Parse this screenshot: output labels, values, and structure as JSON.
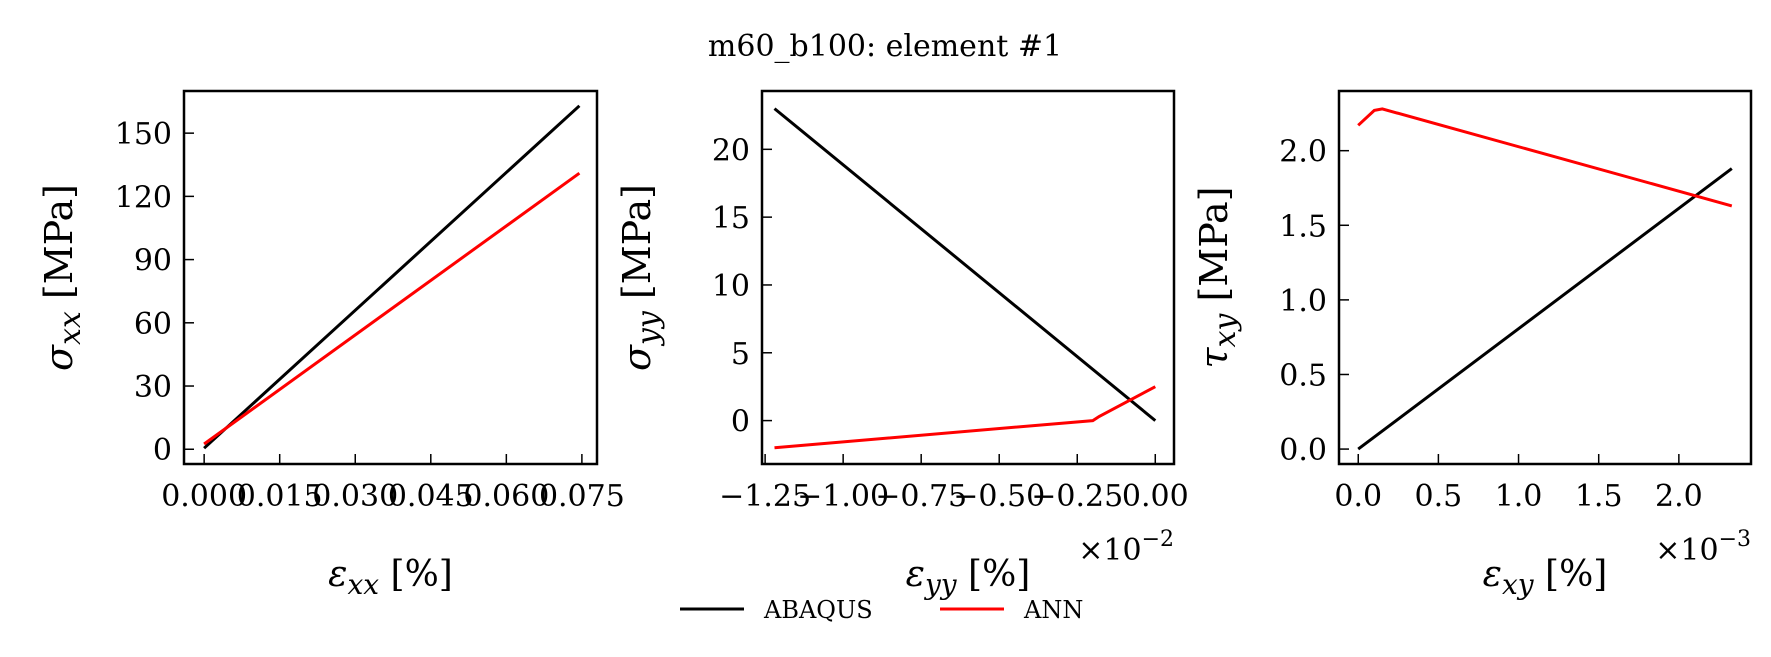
{
  "figure": {
    "title": "m60_b100: element #1",
    "legend": {
      "placement": "bottom-center",
      "entries": [
        {
          "label": "ABAQUS",
          "color": "#000000"
        },
        {
          "label": "ANN",
          "color": "#ff0000"
        }
      ]
    }
  },
  "chart_data": [
    {
      "type": "line",
      "xlabel": "εxx [%]",
      "xlabel_parts": {
        "symbol": "ε",
        "sub": "xx",
        "unit": " [%]"
      },
      "ylabel": "σxx [MPa]",
      "ylabel_parts": {
        "symbol": "σ",
        "sub": "xx",
        "unit": " [MPa]"
      },
      "xlim": [
        -0.004,
        0.078
      ],
      "ylim": [
        -7,
        170
      ],
      "xticks": [
        0.0,
        0.015,
        0.03,
        0.045,
        0.06,
        0.075
      ],
      "xtick_labels": [
        "0.000",
        "0.015",
        "0.030",
        "0.045",
        "0.060",
        "0.075"
      ],
      "yticks": [
        0,
        30,
        60,
        90,
        120,
        150
      ],
      "ytick_labels": [
        "0",
        "30",
        "60",
        "90",
        "120",
        "150"
      ],
      "x_offset_text": "",
      "grid": false,
      "series": [
        {
          "name": "ABAQUS",
          "color": "#000000",
          "x": [
            0.0,
            0.0745
          ],
          "y": [
            0.5,
            163
          ]
        },
        {
          "name": "ANN",
          "color": "#ff0000",
          "x": [
            0.0,
            0.0745
          ],
          "y": [
            2.5,
            131
          ]
        }
      ]
    },
    {
      "type": "line",
      "xlabel": "εyy [%]",
      "xlabel_parts": {
        "symbol": "ε",
        "sub": "yy",
        "unit": " [%]"
      },
      "ylabel": "σyy [MPa]",
      "ylabel_parts": {
        "symbol": "σ",
        "sub": "yy",
        "unit": " [MPa]"
      },
      "xlim": [
        -1.26,
        0.06
      ],
      "ylim": [
        -3.2,
        24.3
      ],
      "xticks": [
        -1.25,
        -1.0,
        -0.75,
        -0.5,
        -0.25,
        0.0
      ],
      "xtick_labels": [
        "−1.25",
        "−1.00",
        "−0.75",
        "−0.50",
        "−0.25",
        "0.00"
      ],
      "yticks": [
        0,
        5,
        10,
        15,
        20
      ],
      "ytick_labels": [
        "0",
        "5",
        "10",
        "15",
        "20"
      ],
      "x_offset_text": "×10−2",
      "x_offset_parts": {
        "base": "×10",
        "exp": "−2"
      },
      "grid": false,
      "series": [
        {
          "name": "ABAQUS",
          "color": "#000000",
          "x": [
            -1.22,
            0.0
          ],
          "y": [
            23.0,
            0.0
          ]
        },
        {
          "name": "ANN",
          "color": "#ff0000",
          "x": [
            -1.22,
            -0.2,
            -0.18,
            0.0
          ],
          "y": [
            -2.0,
            0.0,
            0.3,
            2.5
          ]
        }
      ]
    },
    {
      "type": "line",
      "xlabel": "εxy [%]",
      "xlabel_parts": {
        "symbol": "ε",
        "sub": "xy",
        "unit": " [%]"
      },
      "ylabel": "τxy [MPa]",
      "ylabel_parts": {
        "symbol": "τ",
        "sub": "xy",
        "unit": " [MPa]"
      },
      "xlim": [
        -0.12,
        2.45
      ],
      "ylim": [
        -0.1,
        2.4
      ],
      "xticks": [
        0.0,
        0.5,
        1.0,
        1.5,
        2.0
      ],
      "xtick_labels": [
        "0.0",
        "0.5",
        "1.0",
        "1.5",
        "2.0"
      ],
      "yticks": [
        0.0,
        0.5,
        1.0,
        1.5,
        2.0
      ],
      "ytick_labels": [
        "0.0",
        "0.5",
        "1.0",
        "1.5",
        "2.0"
      ],
      "x_offset_text": "×10−3",
      "x_offset_parts": {
        "base": "×10",
        "exp": "−3"
      },
      "grid": false,
      "series": [
        {
          "name": "ABAQUS",
          "color": "#000000",
          "x": [
            0.0,
            2.33
          ],
          "y": [
            0.0,
            1.88
          ]
        },
        {
          "name": "ANN",
          "color": "#ff0000",
          "x": [
            0.0,
            0.1,
            0.15,
            2.33
          ],
          "y": [
            2.17,
            2.27,
            2.28,
            1.63
          ]
        }
      ]
    }
  ]
}
